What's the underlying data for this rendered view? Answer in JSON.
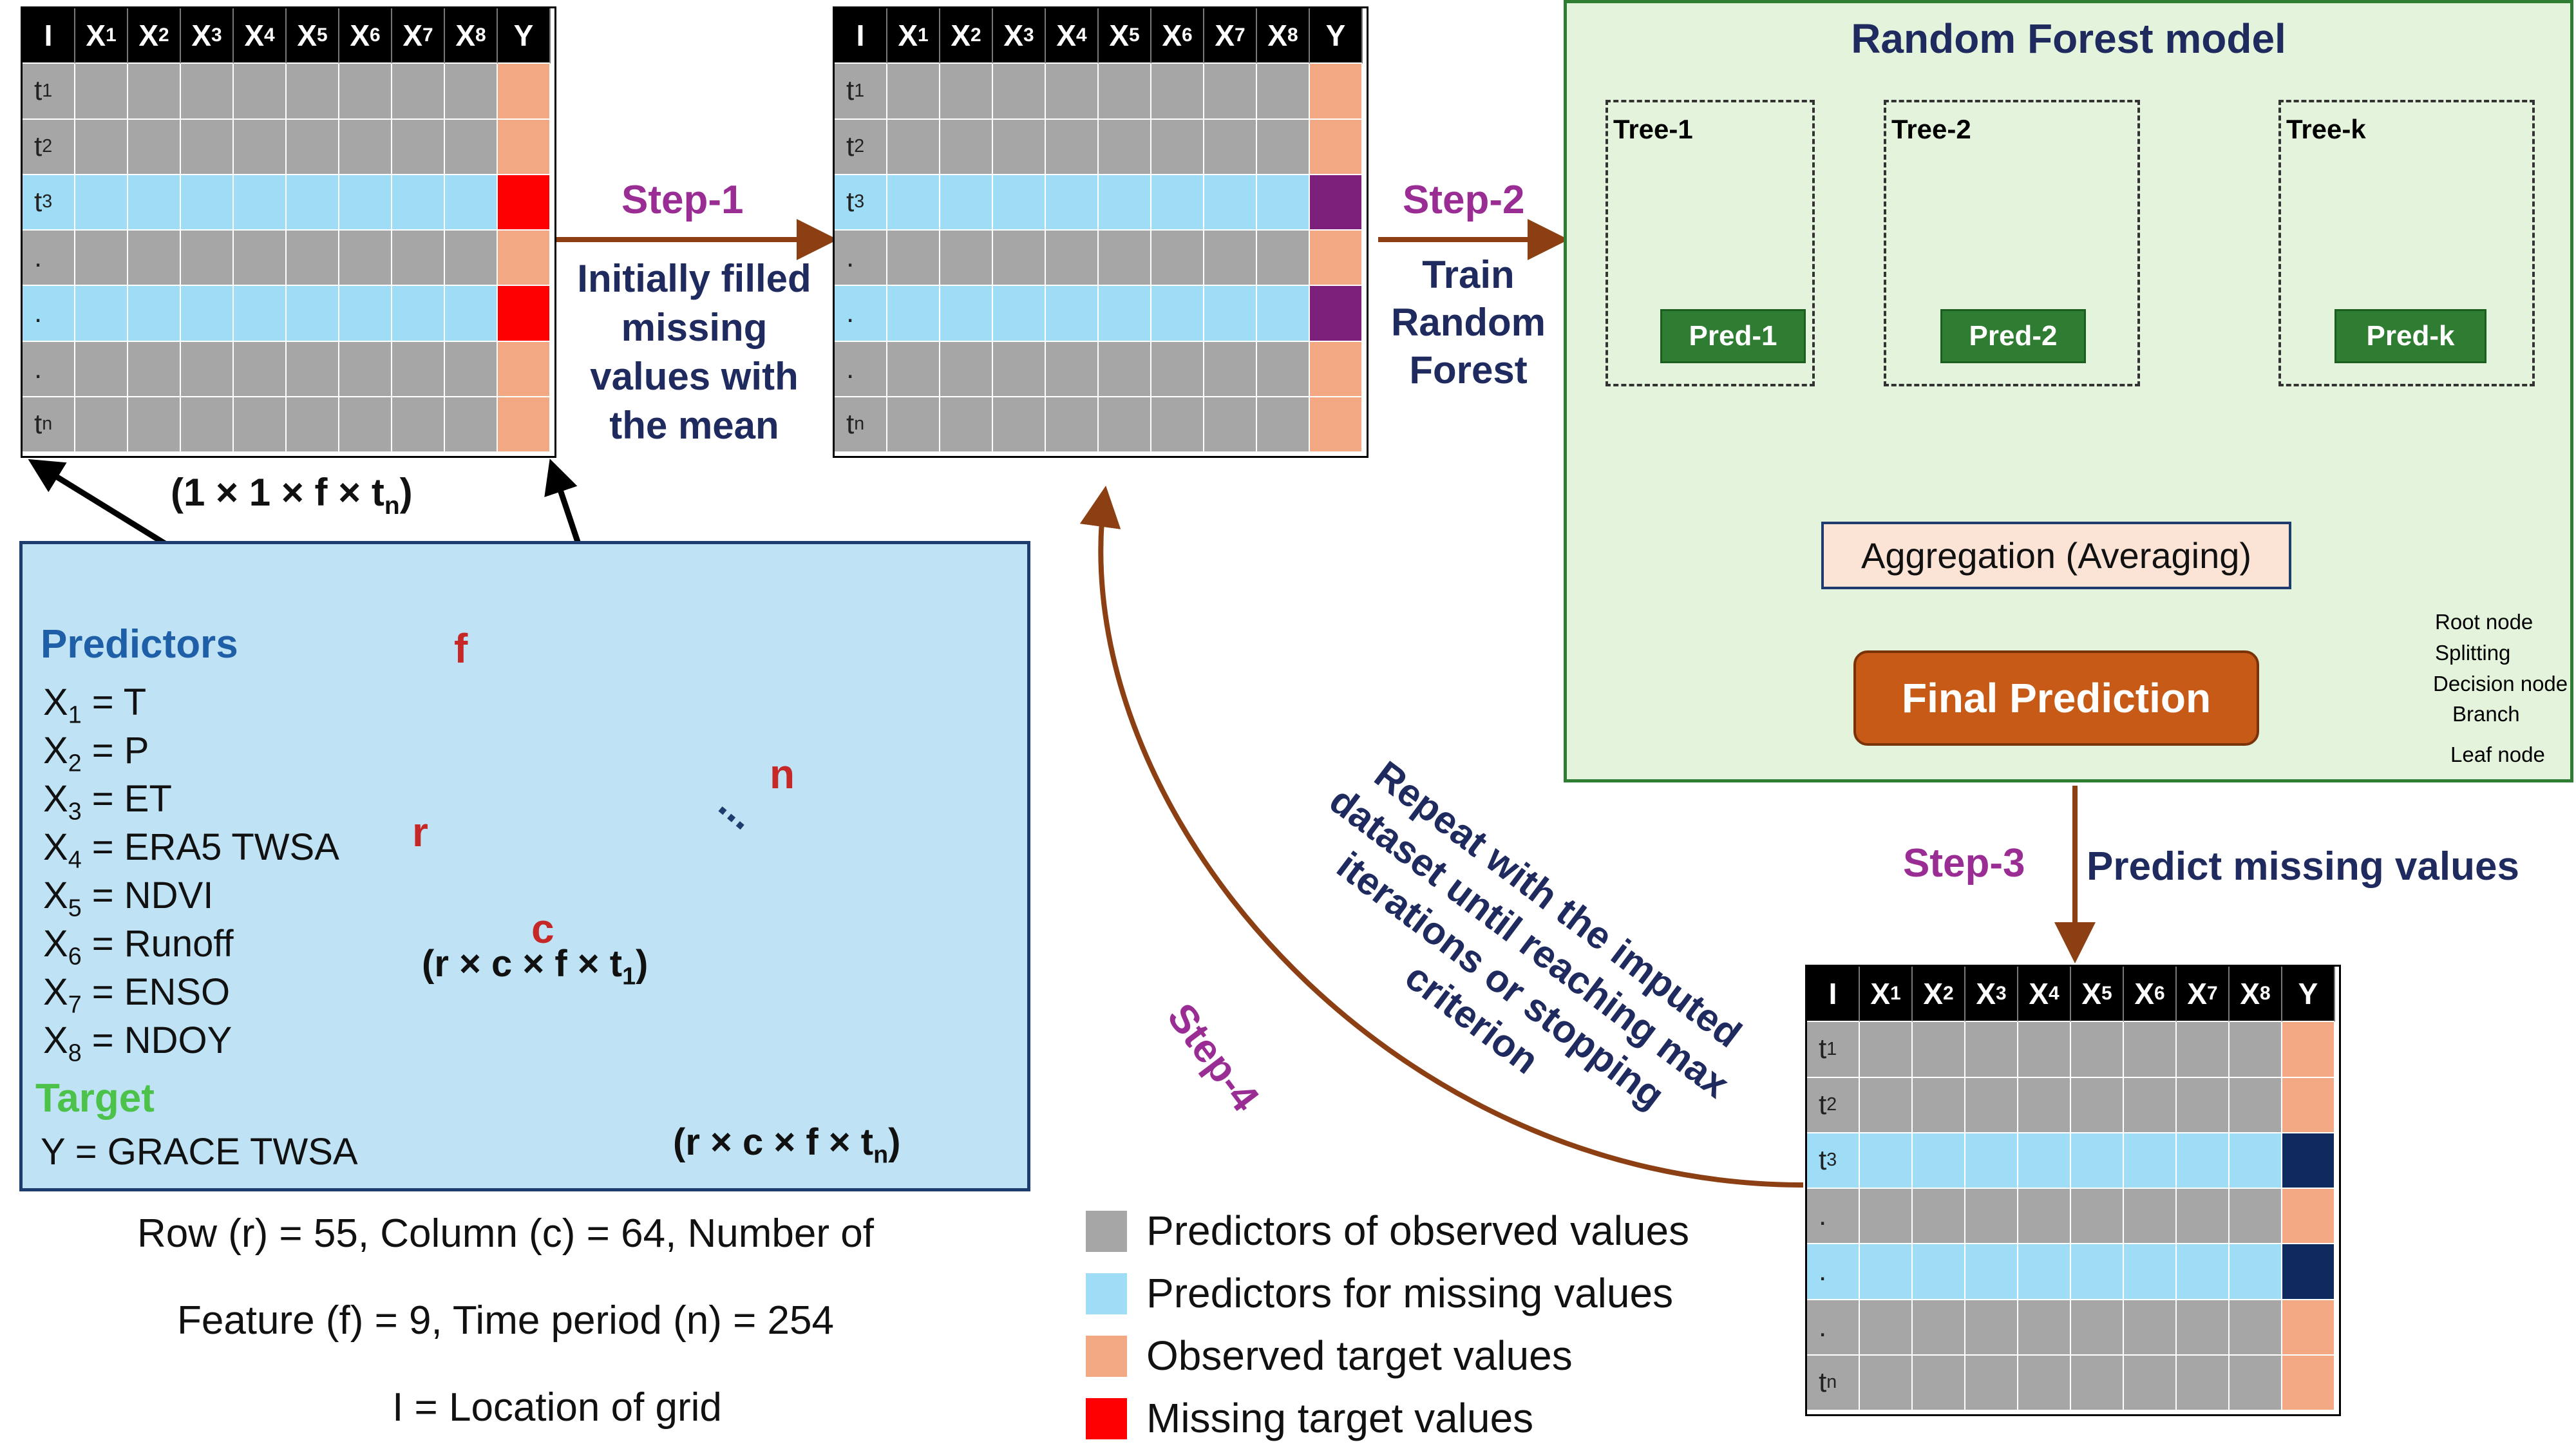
{
  "table_header": [
    "I",
    "X1",
    "X2",
    "X3",
    "X4",
    "X5",
    "X6",
    "X7",
    "X8",
    "Y"
  ],
  "row_indices": [
    "t1",
    "t2",
    "t3",
    ".",
    ".",
    ".",
    "tn"
  ],
  "colors": {
    "observed_predictor": "#a6a6a6",
    "missing_predictor": "#9fdcf5",
    "observed_target": "#f2a882",
    "missing_target": "#ff0000",
    "mean_filled_target": "#7b1f7a",
    "predicted_target": "#0e2a5e",
    "rf_panel": "#e4f4dc",
    "predictor_panel": "#bfe3f5",
    "arrow_brown": "#8b3f12",
    "node_orange": "#f08436",
    "node_dark": "#1d4e6b",
    "final_prediction": "#c65a16"
  },
  "table1_caption": "(1 × 1 × f × tn)",
  "step1": {
    "label": "Step-1",
    "text": [
      "Initially filled",
      "missing",
      "values with",
      "the mean"
    ]
  },
  "step2": {
    "label": "Step-2",
    "text": [
      "Train",
      "Random",
      "Forest"
    ]
  },
  "step3": {
    "label": "Step-3",
    "text": "Predict missing values"
  },
  "step4": {
    "label": "Step-4",
    "text": [
      "Repeat with the imputed",
      "dataset until reaching max",
      "iterations or stopping",
      "criterion"
    ]
  },
  "rf": {
    "title": "Random Forest model",
    "trees": [
      {
        "label": "Tree-1",
        "pred": "Pred-1"
      },
      {
        "label": "Tree-2",
        "pred": "Pred-2"
      },
      {
        "label": "Tree-k",
        "pred": "Pred-k"
      }
    ],
    "aggregation": "Aggregation (Averaging)",
    "final": "Final Prediction",
    "node_legend": [
      "Root node",
      "Splitting",
      "Decision node",
      "Branch",
      "Leaf node"
    ]
  },
  "predictors": {
    "title": "Predictors",
    "items": [
      {
        "var": "X1",
        "name": "T"
      },
      {
        "var": "X2",
        "name": "P"
      },
      {
        "var": "X3",
        "name": "ET"
      },
      {
        "var": "X4",
        "name": "ERA5 TWSA"
      },
      {
        "var": "X5",
        "name": "NDVI"
      },
      {
        "var": "X6",
        "name": "Runoff"
      },
      {
        "var": "X7",
        "name": "ENSO"
      },
      {
        "var": "X8",
        "name": "NDOY"
      }
    ],
    "target_title": "Target",
    "target": "Y = GRACE TWSA"
  },
  "cube": {
    "f": "f",
    "r": "r",
    "c": "c",
    "n": "n",
    "dots": "...",
    "caption1": "(r × c × f × t1)",
    "caption2": "(r × c × f × tn)"
  },
  "notes": [
    "Row (r) = 55, Column (c) = 64, Number of",
    "Feature (f) = 9, Time period (n) = 254",
    "I = Location of grid"
  ],
  "legend": [
    {
      "text": "Predictors of observed values",
      "color": "#a6a6a6"
    },
    {
      "text": "Predictors for missing values",
      "color": "#9fdcf5"
    },
    {
      "text": "Observed target values",
      "color": "#f2a882"
    },
    {
      "text": "Missing target values",
      "color": "#ff0000"
    }
  ]
}
